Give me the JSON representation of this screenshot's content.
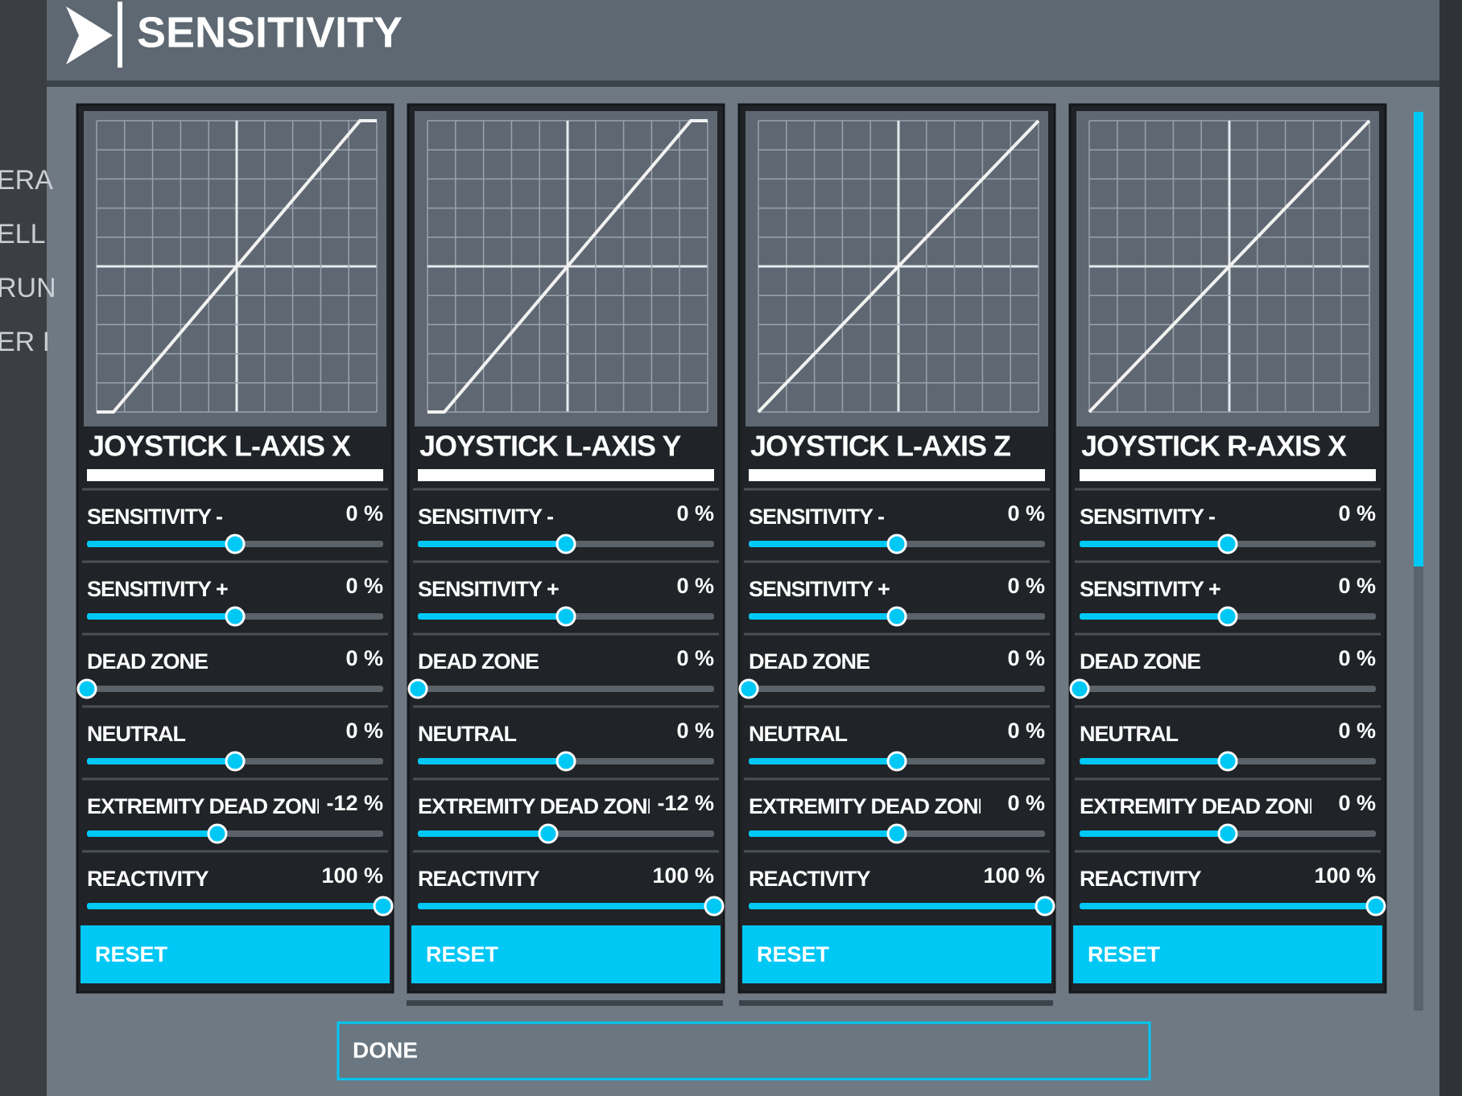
{
  "header": {
    "title": "SENSITIVITY"
  },
  "sidebar": [
    "ERA",
    "ELL",
    "RUN",
    "ER I"
  ],
  "panels": [
    {
      "title": "JOYSTICK L-AXIS X",
      "reset": "RESET",
      "settings": [
        {
          "label": "SENSITIVITY -",
          "value": 0,
          "value_label": "0 %",
          "min": -100,
          "max": 100
        },
        {
          "label": "SENSITIVITY +",
          "value": 0,
          "value_label": "0 %",
          "min": -100,
          "max": 100
        },
        {
          "label": "DEAD ZONE",
          "value": 0,
          "value_label": "0 %",
          "min": 0,
          "max": 100
        },
        {
          "label": "NEUTRAL",
          "value": 0,
          "value_label": "0 %",
          "min": -100,
          "max": 100
        },
        {
          "label": "EXTREMITY DEAD ZONE",
          "value": -12,
          "value_label": "-12 %",
          "min": -100,
          "max": 100
        },
        {
          "label": "REACTIVITY",
          "value": 100,
          "value_label": "100 %",
          "min": 0,
          "max": 100
        }
      ]
    },
    {
      "title": "JOYSTICK L-AXIS Y",
      "reset": "RESET",
      "settings": [
        {
          "label": "SENSITIVITY -",
          "value": 0,
          "value_label": "0 %",
          "min": -100,
          "max": 100
        },
        {
          "label": "SENSITIVITY +",
          "value": 0,
          "value_label": "0 %",
          "min": -100,
          "max": 100
        },
        {
          "label": "DEAD ZONE",
          "value": 0,
          "value_label": "0 %",
          "min": 0,
          "max": 100
        },
        {
          "label": "NEUTRAL",
          "value": 0,
          "value_label": "0 %",
          "min": -100,
          "max": 100
        },
        {
          "label": "EXTREMITY DEAD ZONE",
          "value": -12,
          "value_label": "-12 %",
          "min": -100,
          "max": 100
        },
        {
          "label": "REACTIVITY",
          "value": 100,
          "value_label": "100 %",
          "min": 0,
          "max": 100
        }
      ]
    },
    {
      "title": "JOYSTICK L-AXIS Z",
      "reset": "RESET",
      "settings": [
        {
          "label": "SENSITIVITY -",
          "value": 0,
          "value_label": "0 %",
          "min": -100,
          "max": 100
        },
        {
          "label": "SENSITIVITY +",
          "value": 0,
          "value_label": "0 %",
          "min": -100,
          "max": 100
        },
        {
          "label": "DEAD ZONE",
          "value": 0,
          "value_label": "0 %",
          "min": 0,
          "max": 100
        },
        {
          "label": "NEUTRAL",
          "value": 0,
          "value_label": "0 %",
          "min": -100,
          "max": 100
        },
        {
          "label": "EXTREMITY DEAD ZONE",
          "value": 0,
          "value_label": "0 %",
          "min": -100,
          "max": 100
        },
        {
          "label": "REACTIVITY",
          "value": 100,
          "value_label": "100 %",
          "min": 0,
          "max": 100
        }
      ]
    },
    {
      "title": "JOYSTICK R-AXIS X",
      "reset": "RESET",
      "settings": [
        {
          "label": "SENSITIVITY -",
          "value": 0,
          "value_label": "0 %",
          "min": -100,
          "max": 100
        },
        {
          "label": "SENSITIVITY +",
          "value": 0,
          "value_label": "0 %",
          "min": -100,
          "max": 100
        },
        {
          "label": "DEAD ZONE",
          "value": 0,
          "value_label": "0 %",
          "min": 0,
          "max": 100
        },
        {
          "label": "NEUTRAL",
          "value": 0,
          "value_label": "0 %",
          "min": -100,
          "max": 100
        },
        {
          "label": "EXTREMITY DEAD ZONE",
          "value": 0,
          "value_label": "0 %",
          "min": -100,
          "max": 100
        },
        {
          "label": "REACTIVITY",
          "value": 100,
          "value_label": "100 %",
          "min": 0,
          "max": 100
        }
      ]
    }
  ],
  "done": "DONE"
}
